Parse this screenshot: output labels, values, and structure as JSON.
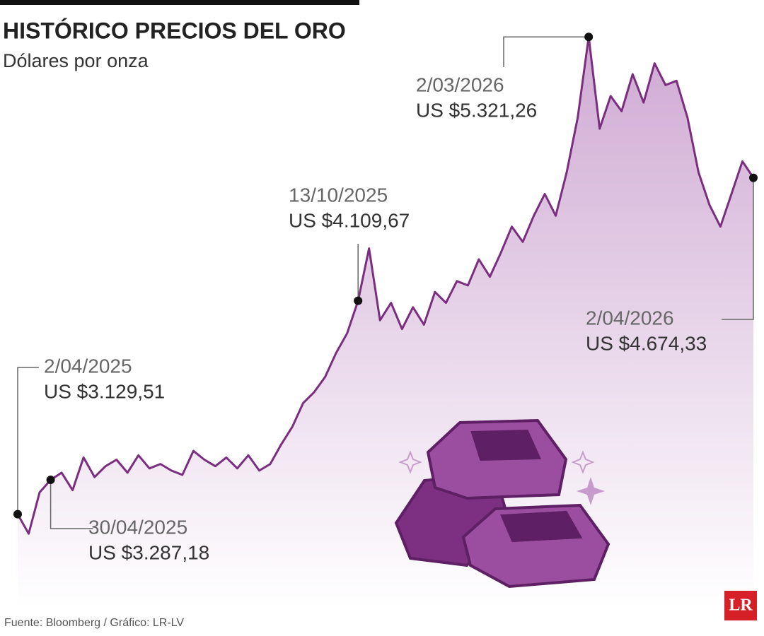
{
  "chart_data": {
    "type": "area",
    "title": "HISTÓRICO PRECIOS DEL ORO",
    "subtitle": "Dólares por onza",
    "source": "Fuente: Bloomberg / Gráfico: LR-LV",
    "logo": "LR",
    "color": "#7b2d80",
    "ylim": [
      2700,
      5400
    ],
    "values": [
      3129.51,
      3040,
      3230,
      3287.18,
      3320,
      3240,
      3390,
      3300,
      3350,
      3380,
      3320,
      3400,
      3340,
      3360,
      3330,
      3310,
      3420,
      3380,
      3350,
      3390,
      3340,
      3400,
      3330,
      3360,
      3450,
      3530,
      3640,
      3690,
      3760,
      3870,
      3960,
      4109.67,
      4350,
      4020,
      4100,
      3980,
      4080,
      4000,
      4150,
      4100,
      4200,
      4180,
      4300,
      4220,
      4330,
      4450,
      4380,
      4500,
      4600,
      4500,
      4700,
      4950,
      5321.26,
      4900,
      5050,
      4980,
      5150,
      5020,
      5200,
      5100,
      5120,
      4950,
      4700,
      4550,
      4450,
      4600,
      4750,
      4674.33
    ],
    "annotations": [
      {
        "date": "2/04/2025",
        "value": 3129.51,
        "value_label": "US $3.129,51"
      },
      {
        "date": "30/04/2025",
        "value": 3287.18,
        "value_label": "US $3.287,18"
      },
      {
        "date": "13/10/2025",
        "value": 4109.67,
        "value_label": "US $4.109,67"
      },
      {
        "date": "2/03/2026",
        "value": 5321.26,
        "value_label": "US $5.321,26"
      },
      {
        "date": "2/04/2026",
        "value": 4674.33,
        "value_label": "US $4.674,33"
      }
    ]
  }
}
